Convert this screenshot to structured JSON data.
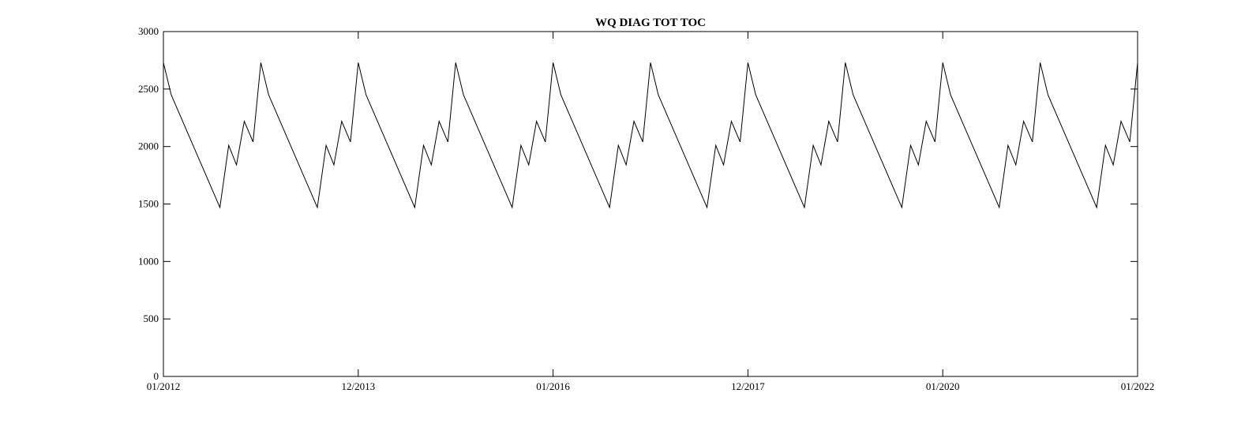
{
  "chart_data": {
    "type": "line",
    "title": "WQ DIAG TOT TOC",
    "xlabel": "",
    "ylabel": "",
    "ylim": [
      0,
      3000
    ],
    "xlim_years": [
      2012.0,
      2022.0
    ],
    "grid": false,
    "yticks": [
      0,
      500,
      1000,
      1500,
      2000,
      2500,
      3000
    ],
    "xticks": [
      {
        "label": "01/2012",
        "year": 2012.0
      },
      {
        "label": "12/2013",
        "year": 2014.0
      },
      {
        "label": "01/2016",
        "year": 2016.0
      },
      {
        "label": "12/2017",
        "year": 2018.0
      },
      {
        "label": "01/2020",
        "year": 2020.0
      },
      {
        "label": "01/2022",
        "year": 2022.0
      }
    ],
    "series": [
      {
        "color": "#000000",
        "cycle_period_years": 1.0,
        "cycle_shape": [
          {
            "year_offset": 0.0,
            "value": 2730
          },
          {
            "year_offset": 0.08,
            "value": 2450
          },
          {
            "year_offset": 0.58,
            "value": 1470
          },
          {
            "year_offset": 0.67,
            "value": 2010
          },
          {
            "year_offset": 0.75,
            "value": 1840
          },
          {
            "year_offset": 0.83,
            "value": 2220
          },
          {
            "year_offset": 0.92,
            "value": 2040
          },
          {
            "year_offset": 1.0,
            "value": 2730
          }
        ]
      }
    ]
  }
}
